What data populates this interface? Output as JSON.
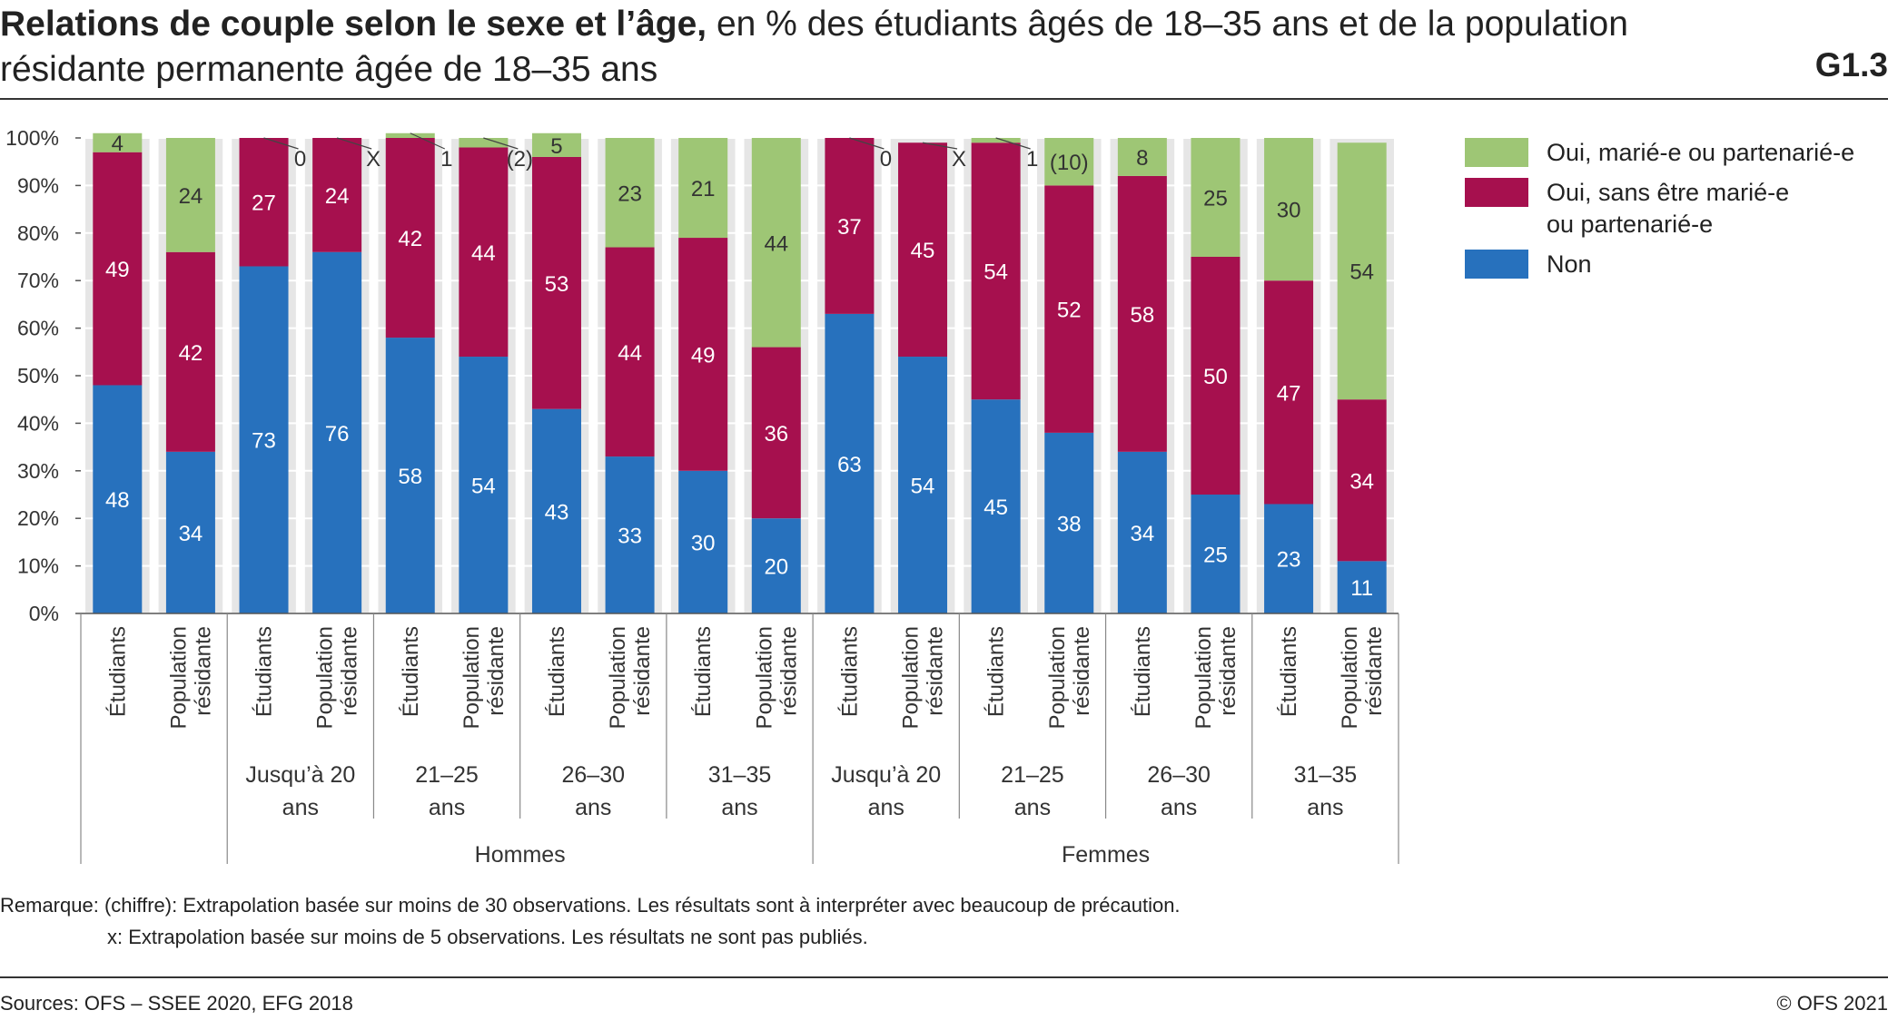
{
  "title": {
    "bold": "Relations de couple selon le sexe et l’âge,",
    "rest": " en % des étudiants âgés de 18–35 ans et de la population résidante permanente âgée de 18–35 ans"
  },
  "chart_id": "G1.3",
  "chart_data": {
    "type": "bar",
    "stacked": true,
    "ylim": [
      0,
      100
    ],
    "y_ticks": [
      "0%",
      "10%",
      "20%",
      "30%",
      "40%",
      "50%",
      "60%",
      "70%",
      "80%",
      "90%",
      "100%"
    ],
    "grid": "horizontal",
    "legend_position": "right",
    "categories": [
      "Étudiants",
      "Population résidante",
      "Étudiants",
      "Population résidante",
      "Étudiants",
      "Population résidante",
      "Étudiants",
      "Population résidante",
      "Étudiants",
      "Population résidante",
      "Étudiants",
      "Population résidante",
      "Étudiants",
      "Population résidante",
      "Étudiants",
      "Population résidante",
      "Étudiants",
      "Population résidante"
    ],
    "category_lines": [
      [
        "Étudiants"
      ],
      [
        "Population",
        "résidante"
      ],
      [
        "Étudiants"
      ],
      [
        "Population",
        "résidante"
      ],
      [
        "Étudiants"
      ],
      [
        "Population",
        "résidante"
      ],
      [
        "Étudiants"
      ],
      [
        "Population",
        "résidante"
      ],
      [
        "Étudiants"
      ],
      [
        "Population",
        "résidante"
      ],
      [
        "Étudiants"
      ],
      [
        "Population",
        "résidante"
      ],
      [
        "Étudiants"
      ],
      [
        "Population",
        "résidante"
      ],
      [
        "Étudiants"
      ],
      [
        "Population",
        "résidante"
      ],
      [
        "Étudiants"
      ],
      [
        "Population",
        "résidante"
      ]
    ],
    "age_groups": [
      {
        "lines": [],
        "start": 0,
        "end": 2
      },
      {
        "lines": [
          "Jusqu’à 20",
          "ans"
        ],
        "start": 2,
        "end": 4
      },
      {
        "lines": [
          "21–25",
          "ans"
        ],
        "start": 4,
        "end": 6
      },
      {
        "lines": [
          "26–30",
          "ans"
        ],
        "start": 6,
        "end": 8
      },
      {
        "lines": [
          "31–35",
          "ans"
        ],
        "start": 8,
        "end": 10
      },
      {
        "lines": [
          "Jusqu’à 20",
          "ans"
        ],
        "start": 10,
        "end": 12
      },
      {
        "lines": [
          "21–25",
          "ans"
        ],
        "start": 12,
        "end": 14
      },
      {
        "lines": [
          "26–30",
          "ans"
        ],
        "start": 14,
        "end": 16
      },
      {
        "lines": [
          "31–35",
          "ans"
        ],
        "start": 16,
        "end": 18
      }
    ],
    "sex_groups": [
      {
        "label": "Hommes",
        "start": 2,
        "end": 10
      },
      {
        "label": "Femmes",
        "start": 10,
        "end": 18
      }
    ],
    "series": [
      {
        "name": "Non",
        "color": "#2771bd",
        "values": [
          48,
          34,
          73,
          76,
          58,
          54,
          43,
          33,
          30,
          20,
          63,
          54,
          45,
          38,
          34,
          25,
          23,
          11
        ],
        "labels": [
          "48",
          "34",
          "73",
          "76",
          "58",
          "54",
          "43",
          "33",
          "30",
          "20",
          "63",
          "54",
          "45",
          "38",
          "34",
          "25",
          "23",
          "11"
        ]
      },
      {
        "name": "Oui, sans être marié-e ou partenarié-e",
        "name_lines": [
          "Oui, sans être marié-e",
          "ou partenarié-e"
        ],
        "color": "#a6104e",
        "values": [
          49,
          42,
          27,
          24,
          42,
          44,
          53,
          44,
          49,
          36,
          37,
          45,
          54,
          52,
          58,
          50,
          47,
          34
        ],
        "labels": [
          "49",
          "42",
          "27",
          "24",
          "42",
          "44",
          "53",
          "44",
          "49",
          "36",
          "37",
          "45",
          "54",
          "52",
          "58",
          "50",
          "47",
          "34"
        ]
      },
      {
        "name": "Oui, marié-e ou partenarié-e",
        "color": "#9ec675",
        "values": [
          4,
          24,
          0,
          0,
          1,
          2,
          5,
          23,
          21,
          44,
          0,
          0,
          1,
          10,
          8,
          25,
          30,
          54
        ],
        "labels": [
          "4",
          "24",
          "0",
          "X",
          "1",
          "(2)",
          "5",
          "23",
          "21",
          "44",
          "0",
          "X",
          "1",
          "(10)",
          "8",
          "25",
          "30",
          "54"
        ]
      }
    ]
  },
  "remarks": {
    "line1": "Remarque: (chiffre): Extrapolation basée sur moins de 30 observations. Les résultats sont à interpréter avec beaucoup de précaution.",
    "line2": "x: Extrapolation basée sur moins de 5 observations. Les résultats ne sont pas publiés."
  },
  "sources": "Sources: OFS – SSEE 2020, EFG 2018",
  "copyright": "© OFS 2021"
}
